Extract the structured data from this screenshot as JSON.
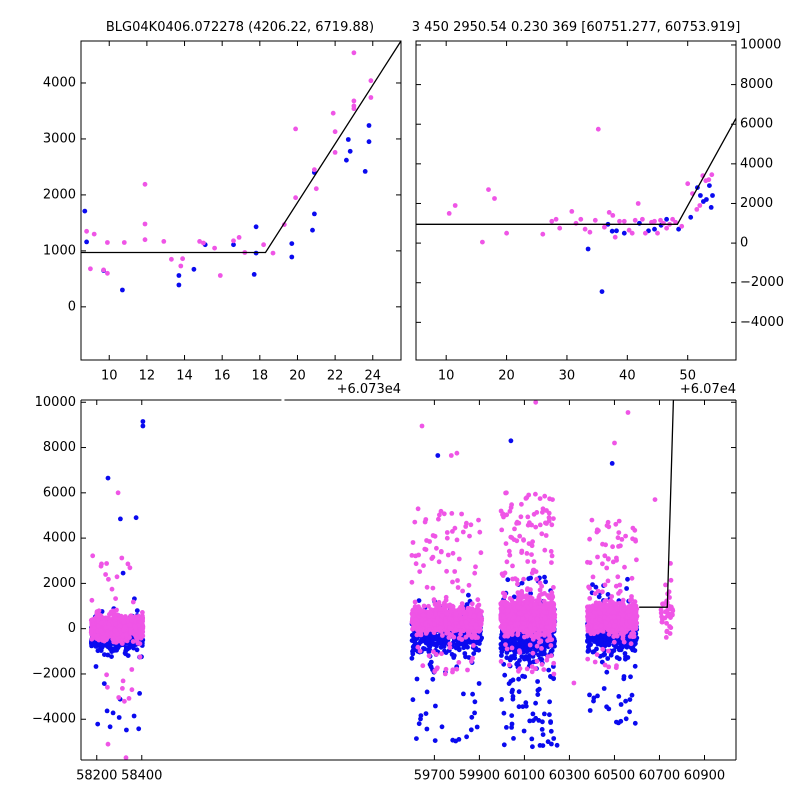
{
  "titles": {
    "left": "BLG04K0406.072278 (4206.22, 6719.88)",
    "right": "3 450 2950.54 0.230 369 [60751.277, 60753.919]"
  },
  "colors": {
    "blue": "#0a0aef",
    "magenta": "#ef55e6",
    "line": "#000000"
  },
  "chart_data": [
    {
      "type": "scatter",
      "xlim": [
        8.5,
        25.5
      ],
      "ylim": [
        -950,
        4750
      ],
      "xticks": [
        10,
        12,
        14,
        16,
        18,
        20,
        22,
        24
      ],
      "xtick_labels": [
        "10",
        "12",
        "14",
        "16",
        "18",
        "20",
        "22",
        "24"
      ],
      "yticks": [
        0,
        1000,
        2000,
        3000,
        4000
      ],
      "ytick_labels": [
        "0",
        "1000",
        "2000",
        "3000",
        "4000"
      ],
      "x_offset_label": "+6.073e4",
      "model": {
        "x": [
          8.5,
          18.3,
          25.5
        ],
        "y": [
          970,
          970,
          4750
        ]
      },
      "series": [
        {
          "color": "blue",
          "points": [
            [
              8.7,
              1710
            ],
            [
              8.8,
              1160
            ],
            [
              9.7,
              650
            ],
            [
              10.7,
              300
            ],
            [
              13.7,
              390
            ],
            [
              13.7,
              560
            ],
            [
              14.5,
              670
            ],
            [
              15.1,
              1110
            ],
            [
              16.6,
              1110
            ],
            [
              17.7,
              580
            ],
            [
              17.8,
              960
            ],
            [
              17.8,
              1430
            ],
            [
              19.7,
              1130
            ],
            [
              19.7,
              890
            ],
            [
              20.8,
              1370
            ],
            [
              20.9,
              1660
            ],
            [
              20.9,
              2400
            ],
            [
              22.6,
              2620
            ],
            [
              22.7,
              2990
            ],
            [
              22.8,
              2780
            ],
            [
              23.6,
              2420
            ],
            [
              23.8,
              2950
            ],
            [
              23.8,
              3240
            ]
          ]
        },
        {
          "color": "magenta",
          "points": [
            [
              8.8,
              1350
            ],
            [
              9.0,
              680
            ],
            [
              9.2,
              1300
            ],
            [
              9.7,
              660
            ],
            [
              9.9,
              600
            ],
            [
              9.9,
              1150
            ],
            [
              10.8,
              1150
            ],
            [
              11.9,
              2190
            ],
            [
              11.9,
              1480
            ],
            [
              11.9,
              1200
            ],
            [
              12.9,
              1170
            ],
            [
              13.3,
              850
            ],
            [
              13.8,
              730
            ],
            [
              13.9,
              860
            ],
            [
              14.8,
              1170
            ],
            [
              15.0,
              1140
            ],
            [
              15.6,
              1050
            ],
            [
              15.9,
              560
            ],
            [
              16.6,
              1180
            ],
            [
              16.9,
              1240
            ],
            [
              17.2,
              970
            ],
            [
              18.2,
              1110
            ],
            [
              18.7,
              960
            ],
            [
              19.3,
              1470
            ],
            [
              19.9,
              1950
            ],
            [
              19.9,
              3180
            ],
            [
              20.9,
              2450
            ],
            [
              21.0,
              2110
            ],
            [
              21.9,
              3460
            ],
            [
              22.0,
              2760
            ],
            [
              22.0,
              3130
            ],
            [
              23.0,
              3590
            ],
            [
              23.0,
              3540
            ],
            [
              23.0,
              3680
            ],
            [
              23.0,
              4540
            ],
            [
              23.9,
              3740
            ],
            [
              23.9,
              4040
            ]
          ]
        }
      ]
    },
    {
      "type": "scatter",
      "xlim": [
        5,
        58
      ],
      "ylim": [
        -5900,
        10200
      ],
      "xticks": [
        10,
        20,
        30,
        40,
        50
      ],
      "xtick_labels": [
        "10",
        "20",
        "30",
        "40",
        "50"
      ],
      "yticks": [
        -4000,
        -2000,
        0,
        2000,
        4000,
        6000,
        8000,
        10000
      ],
      "ytick_labels": [
        "−4000",
        "−2000",
        "0",
        "2000",
        "4000",
        "6000",
        "8000",
        "10000"
      ],
      "x_offset_label": "+6.07e4",
      "model": {
        "x": [
          5,
          48.3,
          58
        ],
        "y": [
          950,
          950,
          6300
        ]
      },
      "series": [
        {
          "color": "blue",
          "points": [
            [
              33.5,
              -300
            ],
            [
              35.8,
              -2450
            ],
            [
              36.8,
              950
            ],
            [
              37.5,
              600
            ],
            [
              38.2,
              620
            ],
            [
              39.5,
              500
            ],
            [
              42.0,
              1000
            ],
            [
              43.5,
              620
            ],
            [
              44.5,
              700
            ],
            [
              45.6,
              900
            ],
            [
              46.5,
              1200
            ],
            [
              48.5,
              700
            ],
            [
              50.5,
              1300
            ],
            [
              51.6,
              2800
            ],
            [
              52.1,
              2400
            ],
            [
              52.6,
              2100
            ],
            [
              53.1,
              2200
            ],
            [
              53.6,
              2900
            ],
            [
              53.9,
              1800
            ],
            [
              54.1,
              2400
            ]
          ]
        },
        {
          "color": "magenta",
          "points": [
            [
              10.5,
              1500
            ],
            [
              11.5,
              1900
            ],
            [
              16.0,
              50
            ],
            [
              17.0,
              2700
            ],
            [
              18.0,
              2250
            ],
            [
              20.0,
              500
            ],
            [
              26.0,
              450
            ],
            [
              27.5,
              1100
            ],
            [
              28.2,
              1200
            ],
            [
              28.8,
              750
            ],
            [
              30.8,
              1600
            ],
            [
              31.5,
              1000
            ],
            [
              32.3,
              1200
            ],
            [
              33.0,
              700
            ],
            [
              33.8,
              550
            ],
            [
              34.7,
              1150
            ],
            [
              35.2,
              5750
            ],
            [
              36.2,
              800
            ],
            [
              37.0,
              1550
            ],
            [
              37.6,
              1400
            ],
            [
              38.0,
              300
            ],
            [
              38.7,
              1100
            ],
            [
              39.5,
              1100
            ],
            [
              40.3,
              650
            ],
            [
              40.8,
              500
            ],
            [
              41.3,
              1150
            ],
            [
              41.8,
              2000
            ],
            [
              42.5,
              1200
            ],
            [
              43.0,
              500
            ],
            [
              44.0,
              1050
            ],
            [
              44.5,
              1100
            ],
            [
              45.0,
              500
            ],
            [
              45.5,
              1150
            ],
            [
              46.0,
              1000
            ],
            [
              46.5,
              750
            ],
            [
              47.0,
              950
            ],
            [
              47.5,
              1200
            ],
            [
              48.0,
              1050
            ],
            [
              49.0,
              850
            ],
            [
              50.0,
              3000
            ],
            [
              50.8,
              2500
            ],
            [
              51.5,
              1700
            ],
            [
              52.0,
              1900
            ],
            [
              52.5,
              3400
            ],
            [
              53.0,
              3150
            ],
            [
              53.5,
              3200
            ],
            [
              54.0,
              3450
            ]
          ]
        }
      ]
    },
    {
      "type": "scatter",
      "xlim": [
        58130,
        61040
      ],
      "ylim": [
        -5800,
        10100
      ],
      "xticks": [
        58200,
        58400,
        59700,
        59900,
        60100,
        60300,
        60500,
        60700,
        60900
      ],
      "xtick_labels": [
        "58200",
        "58400",
        "59700",
        "59900",
        "60100",
        "60300",
        "60500",
        "60700",
        "60900"
      ],
      "yticks": [
        -4000,
        -2000,
        0,
        2000,
        4000,
        6000,
        8000,
        10000
      ],
      "ytick_labels": [
        "−4000",
        "−2000",
        "0",
        "2000",
        "4000",
        "6000",
        "8000",
        "10000"
      ],
      "axis_break": {
        "after_x": 58500,
        "before_x": 59550
      },
      "model": {
        "x": [
          60610,
          60735,
          60762,
          61040
        ],
        "y": [
          950,
          950,
          10100,
          10100
        ]
      },
      "season_clouds": [
        {
          "range": [
            58175,
            58405
          ],
          "color": "blue",
          "count": 480,
          "center": -250,
          "spread": 450,
          "tail": 0.08,
          "tail_low": -4600,
          "tail_high": 2600
        },
        {
          "range": [
            58175,
            58405
          ],
          "color": "magenta",
          "count": 650,
          "center": 50,
          "spread": 380,
          "tail": 0.05,
          "tail_low": -3400,
          "tail_high": 3300
        },
        {
          "range": [
            59600,
            59910
          ],
          "color": "blue",
          "count": 520,
          "center": -150,
          "spread": 600,
          "tail": 0.14,
          "tail_low": -5000,
          "tail_high": 1500
        },
        {
          "range": [
            59600,
            59910
          ],
          "color": "magenta",
          "count": 850,
          "center": 400,
          "spread": 420,
          "tail": 0.12,
          "tail_low": -2000,
          "tail_high": 5300
        },
        {
          "range": [
            59995,
            60235
          ],
          "color": "blue",
          "count": 620,
          "center": -250,
          "spread": 700,
          "tail": 0.18,
          "tail_low": -5300,
          "tail_high": 2300
        },
        {
          "range": [
            59995,
            60235
          ],
          "color": "magenta",
          "count": 950,
          "center": 550,
          "spread": 550,
          "tail": 0.15,
          "tail_low": -2000,
          "tail_high": 6000
        },
        {
          "range": [
            60380,
            60600
          ],
          "color": "blue",
          "count": 480,
          "center": -150,
          "spread": 600,
          "tail": 0.12,
          "tail_low": -4200,
          "tail_high": 2200
        },
        {
          "range": [
            60380,
            60600
          ],
          "color": "magenta",
          "count": 800,
          "center": 500,
          "spread": 450,
          "tail": 0.1,
          "tail_low": -1800,
          "tail_high": 4800
        },
        {
          "range": [
            60705,
            60760
          ],
          "color": "magenta",
          "count": 40,
          "center": 700,
          "spread": 600,
          "tail": 0.15,
          "tail_low": -300,
          "tail_high": 4000
        }
      ],
      "outliers": [
        {
          "color": "blue",
          "points": [
            [
              58250,
              6650
            ],
            [
              58305,
              4850
            ],
            [
              58375,
              4900
            ],
            [
              58405,
              8950
            ],
            [
              58405,
              9150
            ],
            [
              59715,
              7650
            ],
            [
              60040,
              8300
            ],
            [
              60490,
              7300
            ],
            [
              60245,
              -5150
            ]
          ]
        },
        {
          "color": "magenta",
          "points": [
            [
              59645,
              8950
            ],
            [
              59775,
              7650
            ],
            [
              59800,
              7750
            ],
            [
              60020,
              6000
            ],
            [
              60150,
              10000
            ],
            [
              60190,
              5850
            ],
            [
              60210,
              5100
            ],
            [
              60500,
              8200
            ],
            [
              60560,
              9550
            ],
            [
              60320,
              -2400
            ],
            [
              58295,
              6000
            ],
            [
              58250,
              -5100
            ],
            [
              58330,
              -5700
            ],
            [
              60680,
              5700
            ]
          ]
        }
      ]
    }
  ]
}
